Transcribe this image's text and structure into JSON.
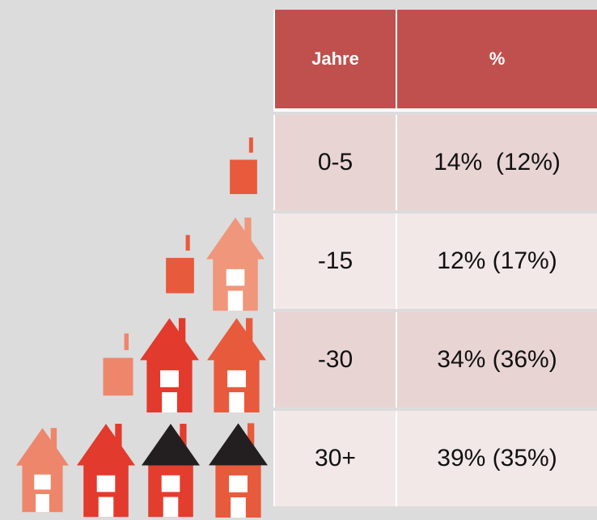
{
  "table": {
    "header": [
      "Jahre",
      "%"
    ],
    "rows": [
      [
        "0-5",
        "14%  (12%)"
      ],
      [
        "-15",
        "12% (17%)"
      ],
      [
        "-30",
        "34% (36%)"
      ],
      [
        "30+",
        "39% (35%)"
      ]
    ]
  }
}
